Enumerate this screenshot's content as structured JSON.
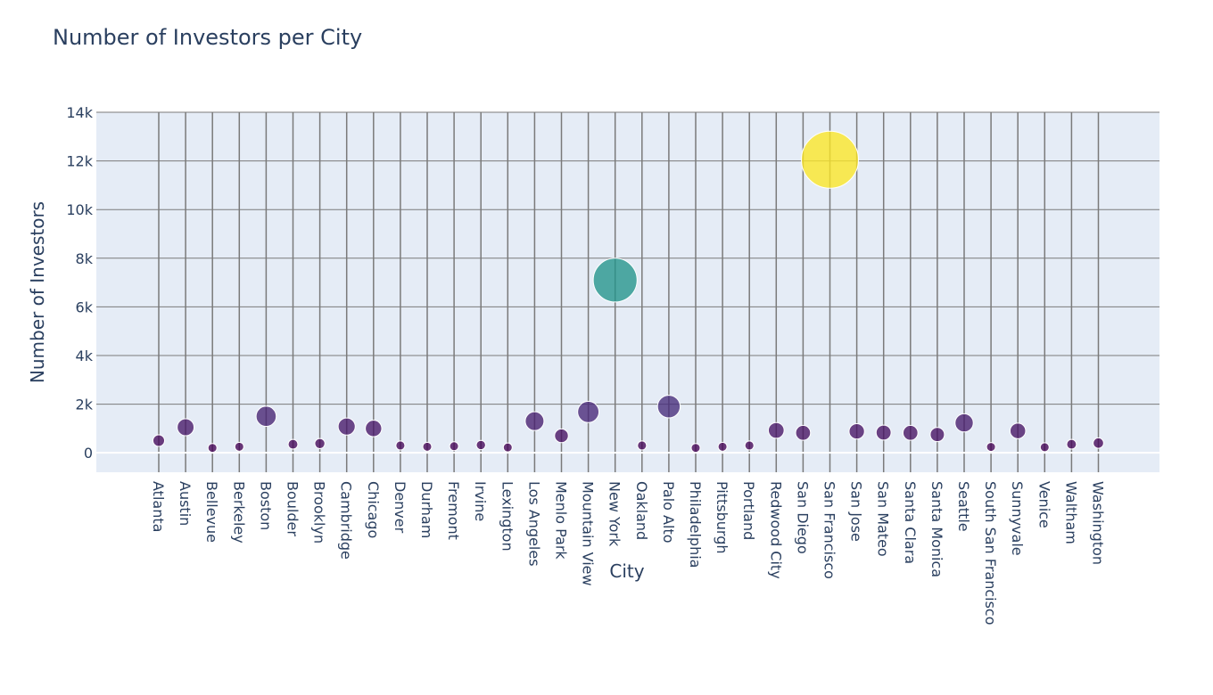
{
  "chart_data": {
    "type": "scatter",
    "subtype": "bubble",
    "title": "Number of Investors per City",
    "xlabel": "City",
    "ylabel": "Number of Investors",
    "ylim": [
      -800,
      14000
    ],
    "yticks": [
      0,
      2000,
      4000,
      6000,
      8000,
      10000,
      12000,
      14000
    ],
    "ytick_labels": [
      "0",
      "2k",
      "4k",
      "6k",
      "8k",
      "10k",
      "12k",
      "14k"
    ],
    "grid": true,
    "colorscale": "viridis",
    "categories": [
      "Atlanta",
      "Austin",
      "Bellevue",
      "Berkeley",
      "Boston",
      "Boulder",
      "Brooklyn",
      "Cambridge",
      "Chicago",
      "Denver",
      "Durham",
      "Fremont",
      "Irvine",
      "Lexington",
      "Los Angeles",
      "Menlo Park",
      "Mountain View",
      "New York",
      "Oakland",
      "Palo Alto",
      "Philadelphia",
      "Pittsburgh",
      "Portland",
      "Redwood City",
      "San Diego",
      "San Francisco",
      "San Jose",
      "San Mateo",
      "Santa Clara",
      "Santa Monica",
      "Seattle",
      "South San Francisco",
      "Sunnyvale",
      "Venice",
      "Waltham",
      "Washington"
    ],
    "values": [
      500,
      1050,
      200,
      250,
      1500,
      350,
      380,
      1080,
      1000,
      300,
      250,
      270,
      320,
      220,
      1300,
      700,
      1680,
      7100,
      300,
      1900,
      200,
      250,
      300,
      920,
      820,
      12050,
      880,
      830,
      820,
      750,
      1230,
      240,
      900,
      230,
      350,
      400
    ]
  }
}
